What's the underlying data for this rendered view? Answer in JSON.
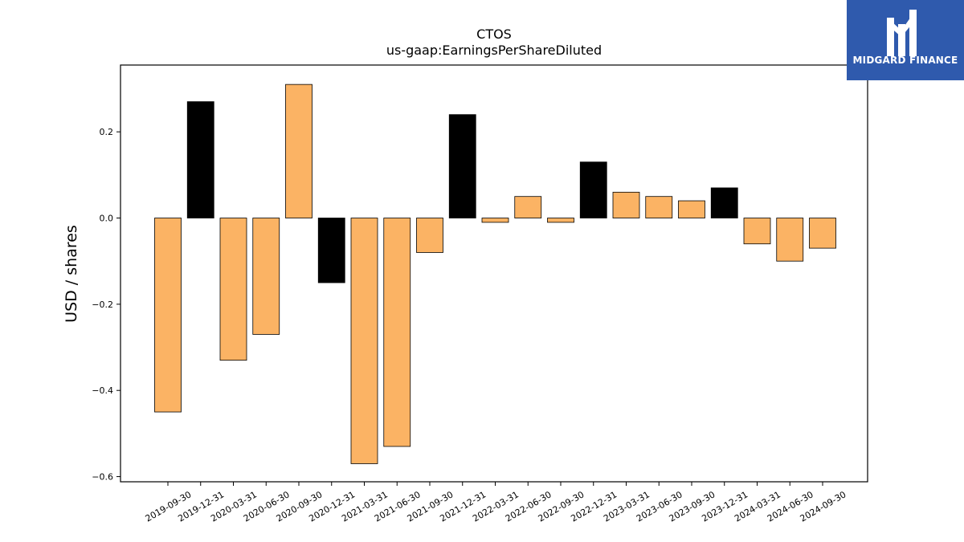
{
  "logo": {
    "text": "MIDGARD FINANCE",
    "background": "#2f5aad"
  },
  "chart_data": {
    "type": "bar",
    "title": "CTOS",
    "subtitle": "us-gaap:EarningsPerShareDiluted",
    "xlabel": "",
    "ylabel": "USD / shares",
    "ylim": [
      -0.612,
      0.355
    ],
    "yticks": [
      0.2,
      0.0,
      -0.2,
      -0.4,
      -0.6
    ],
    "ytick_labels": [
      "0.2",
      "0.0",
      "−0.2",
      "−0.4",
      "−0.6"
    ],
    "grid": false,
    "colors": {
      "quarter": "#fbb364",
      "year_end": "#000000"
    },
    "categories": [
      "2019-09-30",
      "2019-12-31",
      "2020-03-31",
      "2020-06-30",
      "2020-09-30",
      "2020-12-31",
      "2021-03-31",
      "2021-06-30",
      "2021-09-30",
      "2021-12-31",
      "2022-03-31",
      "2022-06-30",
      "2022-09-30",
      "2022-12-31",
      "2023-03-31",
      "2023-06-30",
      "2023-09-30",
      "2023-12-31",
      "2024-03-31",
      "2024-06-30",
      "2024-09-30"
    ],
    "values": [
      -0.45,
      0.27,
      -0.33,
      -0.27,
      0.31,
      -0.15,
      -0.57,
      -0.53,
      -0.08,
      0.24,
      -0.01,
      0.05,
      -0.01,
      0.13,
      0.06,
      0.05,
      0.04,
      0.07,
      -0.06,
      -0.1,
      -0.07
    ]
  }
}
